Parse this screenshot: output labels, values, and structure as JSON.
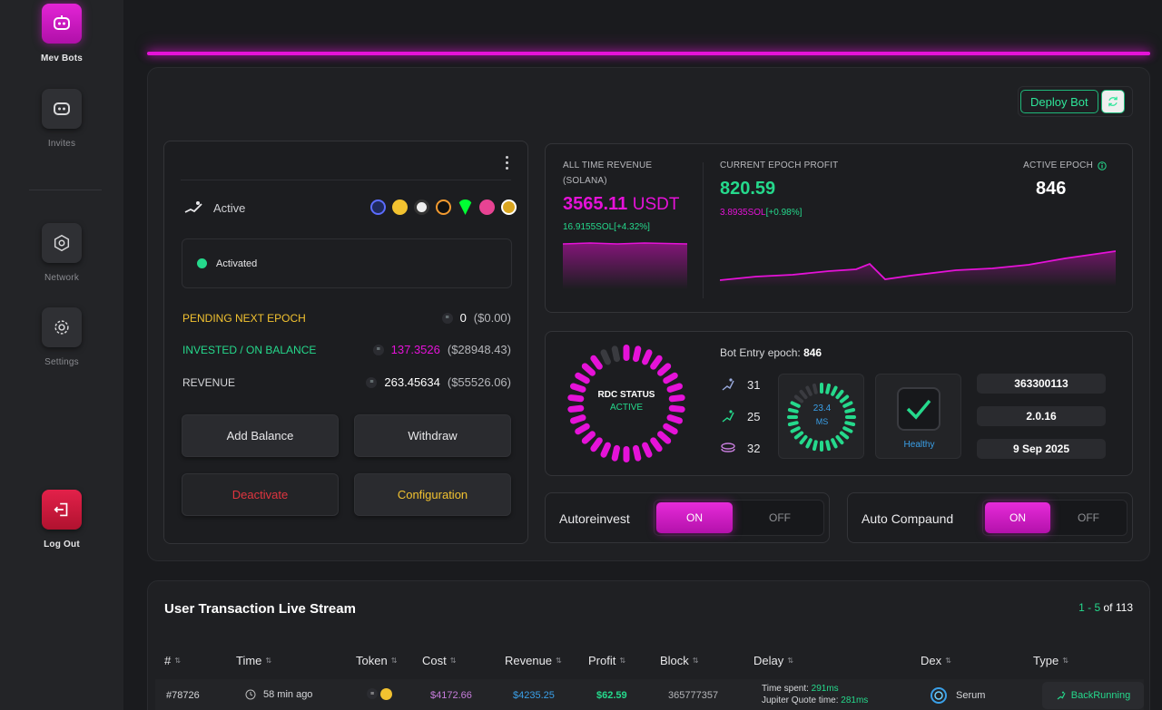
{
  "sidebar": {
    "items": [
      {
        "label": "Mev Bots"
      },
      {
        "label": "Invites"
      },
      {
        "label": "Network"
      },
      {
        "label": "Settings"
      },
      {
        "label": "Log Out"
      }
    ]
  },
  "toolbar": {
    "deploy_label": "Deploy Bot"
  },
  "bot": {
    "status": "Active",
    "activated": "Activated",
    "pending": {
      "label": "PENDING NEXT EPOCH",
      "value": "0",
      "usd": "($0.00)"
    },
    "invested": {
      "label": "INVESTED / ON BALANCE",
      "value": "137.3526",
      "usd": "($28948.43)"
    },
    "revenue": {
      "label": "REVENUE",
      "value": "263.45634",
      "usd": "($55526.06)"
    },
    "buttons": {
      "add": "Add Balance",
      "withdraw": "Withdraw",
      "deactivate": "Deactivate",
      "config": "Configuration"
    }
  },
  "revenue_card": {
    "all_time_label": "ALL TIME REVENUE",
    "all_time_sub": "(SOLANA)",
    "all_time_value": "3565.11",
    "all_time_unit": "USDT",
    "all_time_sol": "16.9155SOL",
    "all_time_pct": "[+4.32%]",
    "epoch_profit_label": "CURRENT EPOCH PROFIT",
    "epoch_profit_value": "820.59",
    "epoch_profit_sol": "3.8935SOL",
    "epoch_profit_pct": "[+0.98%]",
    "active_epoch_label": "ACTIVE EPOCH",
    "active_epoch_value": "846"
  },
  "rdc": {
    "status_label": "RDC STATUS",
    "status_value": "ACTIVE",
    "entry_label": "Bot Entry epoch:",
    "entry_value": "846",
    "metrics": [
      "31",
      "25",
      "32"
    ],
    "ms_value": "23.4",
    "ms_unit": "MS",
    "health": "Healthy",
    "info": [
      "363300113",
      "2.0.16",
      "9 Sep 2025"
    ]
  },
  "toggles": {
    "autoreinvest": {
      "label": "Autoreinvest",
      "on": "ON",
      "off": "OFF"
    },
    "autocompound": {
      "label": "Auto Compaund",
      "on": "ON",
      "off": "OFF"
    }
  },
  "transactions": {
    "title": "User Transaction Live Stream",
    "range": "1 - 5",
    "of": "of",
    "total": "113",
    "headers": [
      "#",
      "Time",
      "Token",
      "Cost",
      "Revenue",
      "Profit",
      "Block",
      "Delay",
      "Dex",
      "Type"
    ],
    "rows": [
      {
        "id": "#78726",
        "time": "58 min ago",
        "cost": "$4172.66",
        "revenue": "$4235.25",
        "profit": "$62.59",
        "block": "365777357",
        "time_spent_label": "Time spent:",
        "time_spent": "291ms",
        "jupiter_label": "Jupiter Quote time:",
        "jupiter": "281ms",
        "dex": "Serum",
        "type": "BackRunning"
      }
    ]
  },
  "colors": {
    "accent": "#e512d8",
    "green": "#25d98c",
    "yellow": "#f2c230",
    "red": "#e0353f",
    "blue": "#3aa0e8"
  }
}
